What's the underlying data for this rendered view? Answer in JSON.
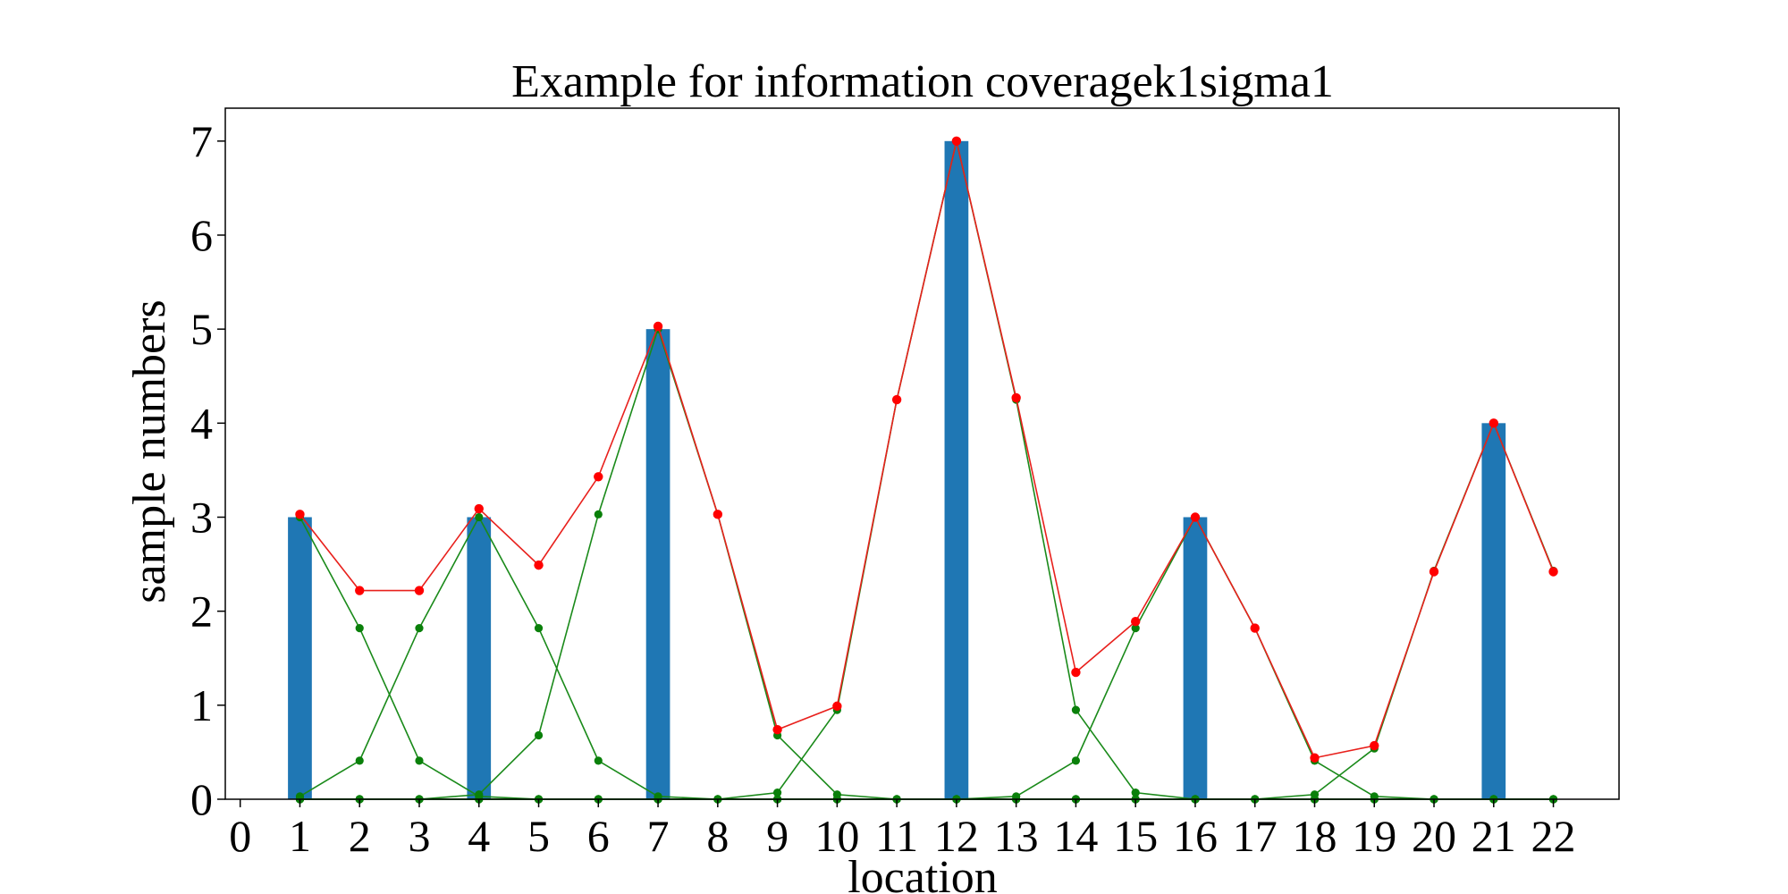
{
  "chart_data": {
    "type": "bar",
    "title": "Example for information coveragek1sigma1",
    "xlabel": "location",
    "ylabel": "sample numbers",
    "xlim": [
      -0.25,
      23.1
    ],
    "ylim": [
      0,
      7.35
    ],
    "x_ticks": [
      0,
      1,
      2,
      3,
      4,
      5,
      6,
      7,
      8,
      9,
      10,
      11,
      12,
      13,
      14,
      15,
      16,
      17,
      18,
      19,
      20,
      21,
      22
    ],
    "y_ticks": [
      0,
      1,
      2,
      3,
      4,
      5,
      6,
      7
    ],
    "grid": false,
    "legend": "none",
    "bars": {
      "color": "#1f77b4",
      "width": 0.4,
      "x": [
        1,
        4,
        7,
        12,
        16,
        21
      ],
      "values": [
        3,
        3,
        5,
        7,
        3,
        4
      ]
    },
    "total_line": {
      "color": "#e8201c",
      "marker_color": "#ff0000",
      "x": [
        1,
        2,
        3,
        4,
        5,
        6,
        7,
        8,
        9,
        10,
        11,
        12,
        13,
        14,
        15,
        16,
        17,
        18,
        19,
        20,
        21,
        22
      ],
      "values": [
        3.03,
        2.22,
        2.22,
        3.09,
        2.49,
        3.43,
        5.03,
        3.03,
        0.74,
        0.99,
        4.25,
        7.0,
        4.27,
        1.35,
        1.89,
        3.0,
        1.82,
        0.44,
        0.57,
        2.42,
        4.0,
        2.42
      ]
    },
    "component_lines": {
      "color": "#1a8a1a",
      "marker_color": "#0a800a",
      "series": [
        {
          "x": [
            1,
            2,
            3,
            4,
            5,
            6,
            7,
            8,
            9,
            10,
            11,
            12,
            13,
            14,
            15,
            16,
            17,
            18,
            19,
            20,
            21,
            22
          ],
          "values": [
            3.0,
            1.82,
            0.41,
            0.03,
            0.0,
            0.0,
            0.0,
            0.0,
            0.0,
            0.0,
            0.0,
            0.0,
            0.0,
            0.0,
            0.0,
            0.0,
            0.0,
            0.0,
            0.0,
            0.0,
            0.0,
            0.0
          ]
        },
        {
          "x": [
            1,
            2,
            3,
            4,
            5,
            6,
            7,
            8,
            9,
            10,
            11,
            12,
            13,
            14,
            15,
            16,
            17,
            18,
            19,
            20,
            21,
            22
          ],
          "values": [
            0.03,
            0.41,
            1.82,
            3.0,
            1.82,
            0.41,
            0.03,
            0.0,
            0.0,
            0.0,
            0.0,
            0.0,
            0.0,
            0.0,
            0.0,
            0.0,
            0.0,
            0.0,
            0.0,
            0.0,
            0.0,
            0.0
          ]
        },
        {
          "x": [
            1,
            2,
            3,
            4,
            5,
            6,
            7,
            8,
            9,
            10,
            11,
            12,
            13,
            14,
            15,
            16,
            17,
            18,
            19,
            20,
            21,
            22
          ],
          "values": [
            0.0,
            0.0,
            0.0,
            0.05,
            0.68,
            3.03,
            5.0,
            3.03,
            0.68,
            0.05,
            0.0,
            0.0,
            0.0,
            0.0,
            0.0,
            0.0,
            0.0,
            0.0,
            0.0,
            0.0,
            0.0,
            0.0
          ]
        },
        {
          "x": [
            1,
            2,
            3,
            4,
            5,
            6,
            7,
            8,
            9,
            10,
            11,
            12,
            13,
            14,
            15,
            16,
            17,
            18,
            19,
            20,
            21,
            22
          ],
          "values": [
            0.0,
            0.0,
            0.0,
            0.0,
            0.0,
            0.0,
            0.0,
            0.0,
            0.07,
            0.95,
            4.25,
            7.0,
            4.25,
            0.95,
            0.07,
            0.0,
            0.0,
            0.0,
            0.0,
            0.0,
            0.0,
            0.0
          ]
        },
        {
          "x": [
            1,
            2,
            3,
            4,
            5,
            6,
            7,
            8,
            9,
            10,
            11,
            12,
            13,
            14,
            15,
            16,
            17,
            18,
            19,
            20,
            21,
            22
          ],
          "values": [
            0.0,
            0.0,
            0.0,
            0.0,
            0.0,
            0.0,
            0.0,
            0.0,
            0.0,
            0.0,
            0.0,
            0.0,
            0.03,
            0.41,
            1.82,
            3.0,
            1.82,
            0.41,
            0.03,
            0.0,
            0.0,
            0.0
          ]
        },
        {
          "x": [
            1,
            2,
            3,
            4,
            5,
            6,
            7,
            8,
            9,
            10,
            11,
            12,
            13,
            14,
            15,
            16,
            17,
            18,
            19,
            20,
            21,
            22
          ],
          "values": [
            0.0,
            0.0,
            0.0,
            0.0,
            0.0,
            0.0,
            0.0,
            0.0,
            0.0,
            0.0,
            0.0,
            0.0,
            0.0,
            0.0,
            0.0,
            0.0,
            0.0,
            0.05,
            0.54,
            2.43,
            4.0,
            2.43
          ]
        }
      ]
    }
  }
}
